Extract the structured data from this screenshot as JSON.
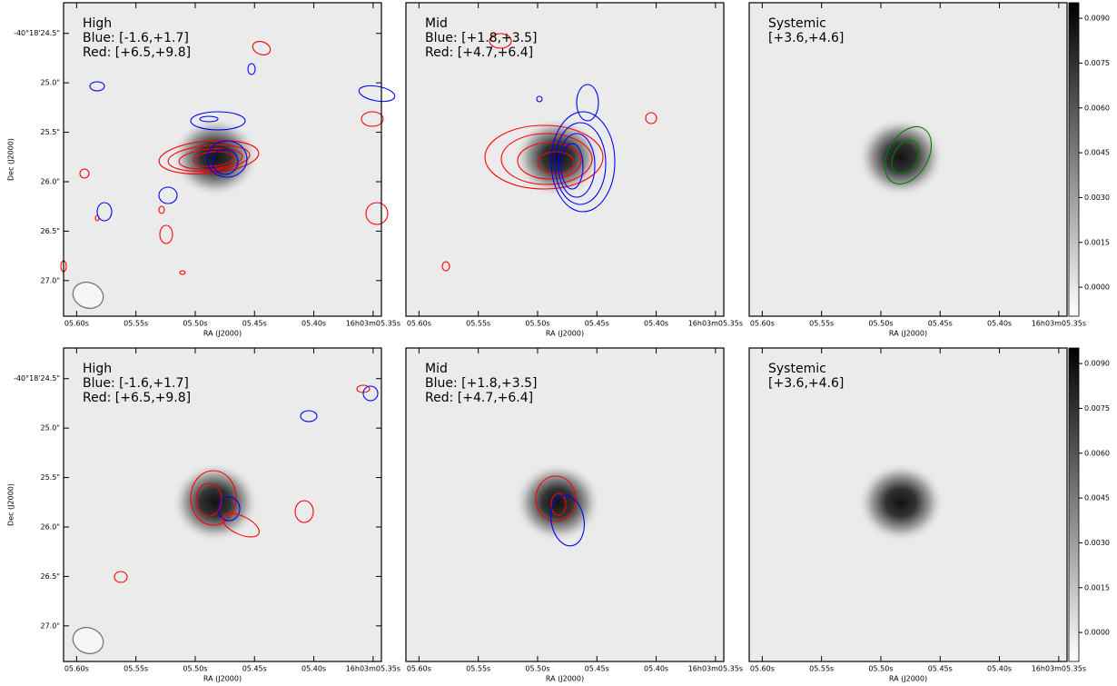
{
  "chart_data": [
    {
      "type": "image",
      "title": "High",
      "annotations": [
        "Blue: [-1.6,+1.7]",
        "Red: [+6.5,+9.8]"
      ],
      "xlabel": "RA (J2000)",
      "ylabel": "Dec (J2000)",
      "xlim": [
        5.611,
        5.343
      ],
      "xticks": [
        {
          "value": 5.6,
          "label": "05.60s"
        },
        {
          "value": 5.55,
          "label": "05.55s"
        },
        {
          "value": 5.5,
          "label": "05.50s"
        },
        {
          "value": 5.45,
          "label": "05.45s"
        },
        {
          "value": 5.4,
          "label": "05.40s"
        },
        {
          "value": 5.35,
          "label": "16h03m05.35s"
        }
      ],
      "ylim": [
        24.19,
        27.36
      ],
      "yticks": [
        {
          "value": 24.5,
          "label": "-40°18'24.5\""
        },
        {
          "value": 25.0,
          "label": "25.0\""
        },
        {
          "value": 25.5,
          "label": "25.5\""
        },
        {
          "value": 26.0,
          "label": "26.0\""
        },
        {
          "value": 26.5,
          "label": "26.5\""
        },
        {
          "value": 27.0,
          "label": "27.0\""
        }
      ]
    },
    {
      "type": "image",
      "title": "Mid",
      "annotations": [
        "Blue: [+1.8,+3.5]",
        "Red:  [+4.7,+6.4]"
      ],
      "xlabel": "RA (J2000)",
      "xlim": [
        5.611,
        5.343
      ],
      "xticks": [
        {
          "value": 5.6,
          "label": "05.60s"
        },
        {
          "value": 5.55,
          "label": "05.55s"
        },
        {
          "value": 5.5,
          "label": "05.50s"
        },
        {
          "value": 5.45,
          "label": "05.45s"
        },
        {
          "value": 5.4,
          "label": "05.40s"
        },
        {
          "value": 5.35,
          "label": "16h03m05.35s"
        }
      ],
      "ylim": [
        24.19,
        27.36
      ]
    },
    {
      "type": "image",
      "title": "Systemic",
      "annotations": [
        "[+3.6,+4.6]"
      ],
      "xlabel": "RA (J2000)",
      "xlim": [
        5.611,
        5.343
      ],
      "xticks": [
        {
          "value": 5.6,
          "label": "05.60s"
        },
        {
          "value": 5.55,
          "label": "05.55s"
        },
        {
          "value": 5.5,
          "label": "05.50s"
        },
        {
          "value": 5.45,
          "label": "05.45s"
        },
        {
          "value": 5.4,
          "label": "05.40s"
        },
        {
          "value": 5.35,
          "label": "16h03m05.35s"
        }
      ],
      "ylim": [
        24.19,
        27.36
      ],
      "clim": [
        -0.00097,
        0.00952
      ],
      "cticks": [
        {
          "value": 0.009,
          "label": "0.0090"
        },
        {
          "value": 0.0075,
          "label": "0.0075"
        },
        {
          "value": 0.006,
          "label": "0.0060"
        },
        {
          "value": 0.0045,
          "label": "0.0045"
        },
        {
          "value": 0.003,
          "label": "0.0030"
        },
        {
          "value": 0.0015,
          "label": "0.0015"
        },
        {
          "value": 0,
          "label": "0.0000"
        }
      ]
    },
    {
      "type": "image",
      "title": "High",
      "annotations": [
        "Blue: [-1.6,+1.7]",
        "Red: [+6.5,+9.8]"
      ],
      "xlabel": "RA (J2000)",
      "ylabel": "Dec (J2000)",
      "xlim": [
        5.611,
        5.343
      ],
      "xticks": [
        {
          "value": 5.6,
          "label": "05.60s"
        },
        {
          "value": 5.55,
          "label": "05.55s"
        },
        {
          "value": 5.5,
          "label": "05.50s"
        },
        {
          "value": 5.45,
          "label": "05.45s"
        },
        {
          "value": 5.4,
          "label": "05.40s"
        },
        {
          "value": 5.35,
          "label": "16h03m05.35s"
        }
      ],
      "ylim": [
        24.19,
        27.36
      ],
      "yticks": [
        {
          "value": 24.5,
          "label": "-40°18'24.5\""
        },
        {
          "value": 25.0,
          "label": "25.0\""
        },
        {
          "value": 25.5,
          "label": "25.5\""
        },
        {
          "value": 26.0,
          "label": "26.0\""
        },
        {
          "value": 26.5,
          "label": "26.5\""
        },
        {
          "value": 27.0,
          "label": "27.0\""
        }
      ]
    },
    {
      "type": "image",
      "title": "Mid",
      "annotations": [
        "Blue: [+1.8,+3.5]",
        "Red:  [+4.7,+6.4]"
      ],
      "xlabel": "RA (J2000)",
      "xlim": [
        5.611,
        5.343
      ],
      "xticks": [
        {
          "value": 5.6,
          "label": "05.60s"
        },
        {
          "value": 5.55,
          "label": "05.55s"
        },
        {
          "value": 5.5,
          "label": "05.50s"
        },
        {
          "value": 5.45,
          "label": "05.45s"
        },
        {
          "value": 5.4,
          "label": "05.40s"
        },
        {
          "value": 5.35,
          "label": "16h03m05.35s"
        }
      ],
      "ylim": [
        24.19,
        27.36
      ]
    },
    {
      "type": "image",
      "title": "Systemic",
      "annotations": [
        "[+3.6,+4.6]"
      ],
      "xlabel": "RA (J2000)",
      "xlim": [
        5.611,
        5.343
      ],
      "xticks": [
        {
          "value": 5.6,
          "label": "05.60s"
        },
        {
          "value": 5.55,
          "label": "05.55s"
        },
        {
          "value": 5.5,
          "label": "05.50s"
        },
        {
          "value": 5.45,
          "label": "05.45s"
        },
        {
          "value": 5.4,
          "label": "05.40s"
        },
        {
          "value": 5.35,
          "label": "16h03m05.35s"
        }
      ],
      "ylim": [
        24.19,
        27.36
      ],
      "clim": [
        -0.00097,
        0.00952
      ],
      "cticks": [
        {
          "value": 0.009,
          "label": "0.0090"
        },
        {
          "value": 0.0075,
          "label": "0.0075"
        },
        {
          "value": 0.006,
          "label": "0.0060"
        },
        {
          "value": 0.0045,
          "label": "0.0045"
        },
        {
          "value": 0.003,
          "label": "0.0030"
        },
        {
          "value": 0.0015,
          "label": "0.0015"
        },
        {
          "value": 0,
          "label": "0.0000"
        }
      ]
    }
  ]
}
